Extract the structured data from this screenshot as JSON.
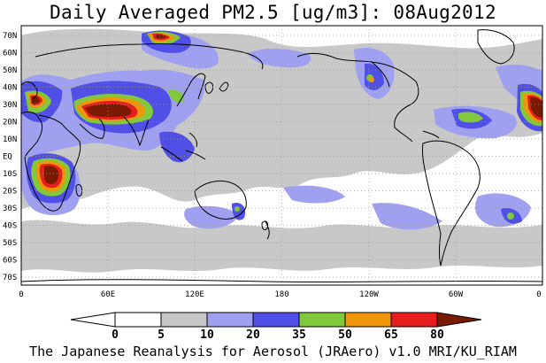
{
  "title": "Daily Averaged PM2.5 [ug/m3]: 08Aug2012",
  "footer": "The Japanese Reanalysis for Aerosol (JRAero) v1.0 MRI/KU_RIAM",
  "lat_labels": [
    "70N",
    "60N",
    "50N",
    "40N",
    "30N",
    "20N",
    "10N",
    "EQ",
    "10S",
    "20S",
    "30S",
    "40S",
    "50S",
    "60S",
    "70S"
  ],
  "lon_labels": [
    "0",
    "60E",
    "120E",
    "180",
    "120W",
    "60W",
    "0"
  ],
  "colorbar": {
    "levels": [
      "0",
      "5",
      "10",
      "20",
      "35",
      "50",
      "65",
      "80"
    ],
    "colors": [
      "#ffffff",
      "#c8c8c8",
      "#a0a0f0",
      "#5050e6",
      "#82c83c",
      "#f0960a",
      "#e61e1e",
      "#7a1a00"
    ]
  }
}
